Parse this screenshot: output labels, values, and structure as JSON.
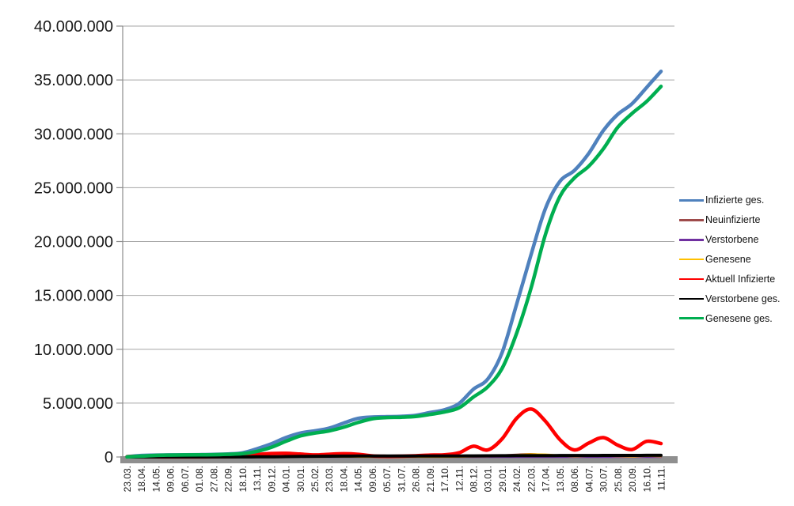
{
  "chart_data": {
    "type": "line",
    "title": "",
    "xlabel": "",
    "ylabel": "",
    "grid": true,
    "legend_position": "right",
    "background": "#ffffff",
    "gridline_color": "#a6a6a6",
    "axis_color": "#8c8c8c",
    "axis_bar_color": "#8f8f8f",
    "categories": [
      "23.03.",
      "18.04.",
      "14.05.",
      "09.06.",
      "06.07.",
      "01.08.",
      "27.08.",
      "22.09.",
      "18.10.",
      "13.11.",
      "09.12.",
      "04.01.",
      "30.01.",
      "25.02.",
      "23.03.",
      "18.04.",
      "14.05.",
      "09.06.",
      "05.07.",
      "31.07.",
      "26.08.",
      "21.09.",
      "17.10.",
      "12.11.",
      "08.12.",
      "03.01.",
      "29.01.",
      "24.02.",
      "22.03.",
      "17.04.",
      "13.05.",
      "08.06.",
      "04.07.",
      "30.07.",
      "25.08.",
      "20.09.",
      "16.10.",
      "11.11."
    ],
    "y_axis": {
      "min": 0,
      "max": 40000000,
      "step": 5000000,
      "tick_labels": [
        "0",
        "5.000.000",
        "10.000.000",
        "15.000.000",
        "20.000.000",
        "25.000.000",
        "30.000.000",
        "35.000.000",
        "40.000.000"
      ]
    },
    "series": [
      {
        "name": "Infizierte ges.",
        "color": "#4F81BD",
        "width": 4.5,
        "values": [
          30000,
          140000,
          175000,
          190000,
          200000,
          210000,
          240000,
          280000,
          380000,
          760000,
          1220000,
          1800000,
          2220000,
          2420000,
          2670000,
          3140000,
          3580000,
          3710000,
          3740000,
          3770000,
          3870000,
          4130000,
          4380000,
          4960000,
          6290000,
          7240000,
          9740000,
          14200000,
          18800000,
          23100000,
          25600000,
          26600000,
          28200000,
          30300000,
          31800000,
          32800000,
          34300000,
          35800000
        ]
      },
      {
        "name": "Neuinfizierte",
        "color": "#9E4B4B",
        "width": 2.5,
        "values": [
          5000,
          3000,
          1000,
          500,
          400,
          700,
          1500,
          2000,
          7000,
          20000,
          25000,
          20000,
          12000,
          9000,
          16000,
          25000,
          15000,
          3000,
          1000,
          2000,
          8000,
          10000,
          12000,
          45000,
          60000,
          50000,
          150000,
          220000,
          280000,
          180000,
          90000,
          50000,
          120000,
          100000,
          50000,
          40000,
          120000,
          45000
        ]
      },
      {
        "name": "Verstorbene",
        "color": "#7030A0",
        "width": 2.5,
        "values": [
          200,
          250,
          150,
          50,
          30,
          20,
          20,
          30,
          60,
          250,
          450,
          600,
          700,
          500,
          300,
          250,
          200,
          100,
          60,
          40,
          50,
          70,
          80,
          150,
          300,
          350,
          250,
          200,
          250,
          200,
          150,
          100,
          100,
          120,
          130,
          100,
          120,
          130
        ]
      },
      {
        "name": "Genesene",
        "color": "#FFC000",
        "width": 2.5,
        "values": [
          1000,
          4000,
          2500,
          800,
          500,
          600,
          1000,
          1500,
          4000,
          12000,
          22000,
          22000,
          14000,
          9000,
          12000,
          20000,
          20000,
          8000,
          2000,
          1500,
          5000,
          8000,
          10000,
          25000,
          45000,
          45000,
          90000,
          180000,
          250000,
          230000,
          130000,
          60000,
          100000,
          110000,
          70000,
          45000,
          90000,
          60000
        ]
      },
      {
        "name": "Aktuell Infizierte",
        "color": "#FF0000",
        "width": 4.5,
        "values": [
          30000,
          50000,
          15000,
          10000,
          10000,
          10000,
          25000,
          35000,
          70000,
          230000,
          320000,
          340000,
          270000,
          190000,
          250000,
          300000,
          250000,
          100000,
          60000,
          70000,
          110000,
          175000,
          195000,
          390000,
          1000000,
          650000,
          1700000,
          3600000,
          4450000,
          3300000,
          1600000,
          650000,
          1300000,
          1800000,
          1100000,
          700000,
          1450000,
          1250000
        ]
      },
      {
        "name": "Verstorbene ges.",
        "color": "#000000",
        "width": 4,
        "values": [
          2000,
          4500,
          8200,
          8800,
          9000,
          9200,
          9300,
          9500,
          9900,
          12000,
          20000,
          35000,
          56000,
          68000,
          75000,
          80000,
          86000,
          89000,
          90500,
          91500,
          92000,
          93000,
          94800,
          97500,
          104000,
          112000,
          118000,
          122000,
          127000,
          132000,
          136500,
          139500,
          141500,
          143500,
          145500,
          148000,
          151000,
          155000
        ]
      },
      {
        "name": "Genesene ges.",
        "color": "#00AE50",
        "width": 4.5,
        "values": [
          10000,
          80000,
          150000,
          175000,
          190000,
          200000,
          215000,
          250000,
          310000,
          520000,
          900000,
          1450000,
          1950000,
          2220000,
          2420000,
          2760000,
          3200000,
          3550000,
          3660000,
          3690000,
          3760000,
          3950000,
          4180000,
          4560000,
          5560000,
          6520000,
          8260000,
          11500000,
          15700000,
          20700000,
          24200000,
          25900000,
          27000000,
          28600000,
          30600000,
          31900000,
          33000000,
          34400000
        ]
      }
    ]
  }
}
